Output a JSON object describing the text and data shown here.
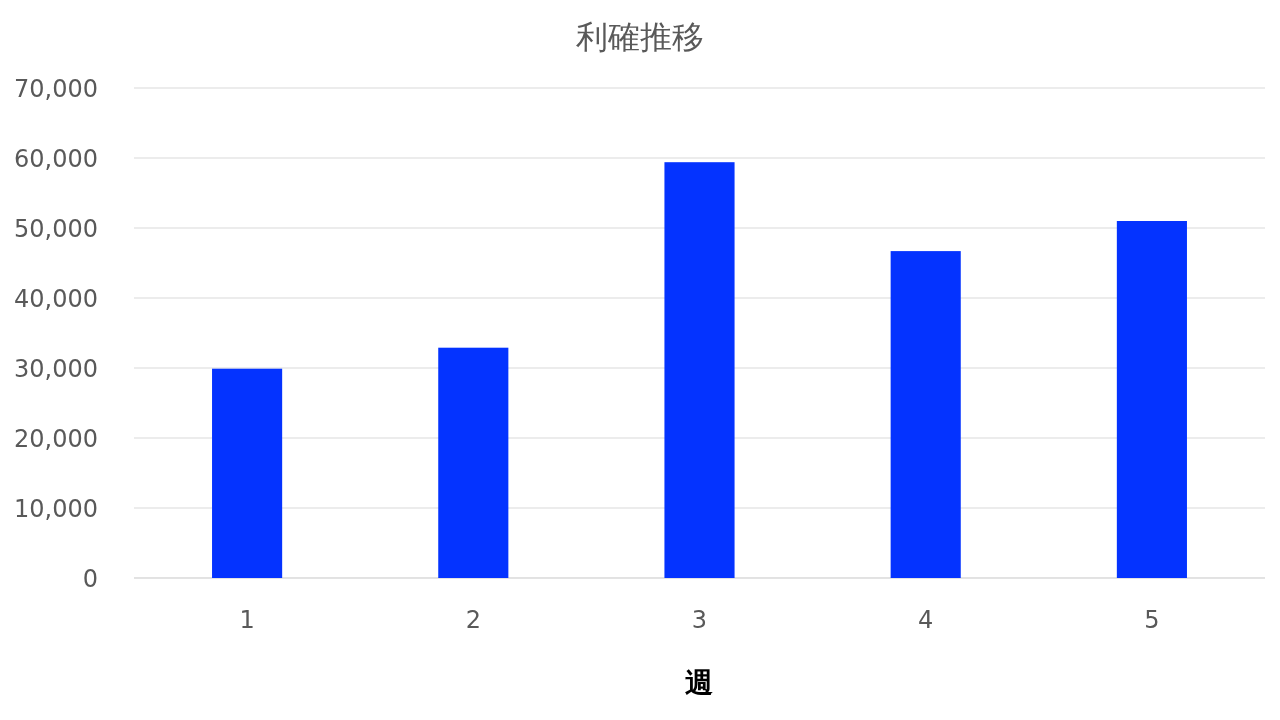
{
  "chart_data": {
    "type": "bar",
    "title": "利確推移",
    "xlabel": "週",
    "categories": [
      "1",
      "2",
      "3",
      "4",
      "5"
    ],
    "values": [
      29900,
      32900,
      59400,
      46700,
      51000
    ],
    "color": "#0433ff",
    "ylim": [
      0,
      70000
    ],
    "yticks": [
      {
        "value": 0,
        "label": "0"
      },
      {
        "value": 10000,
        "label": "10,000"
      },
      {
        "value": 20000,
        "label": "20,000"
      },
      {
        "value": 30000,
        "label": "30,000"
      },
      {
        "value": 40000,
        "label": "40,000"
      },
      {
        "value": 50000,
        "label": "50,000"
      },
      {
        "value": 60000,
        "label": "60,000"
      },
      {
        "value": 70000,
        "label": "70,000"
      }
    ],
    "grid": "y"
  }
}
